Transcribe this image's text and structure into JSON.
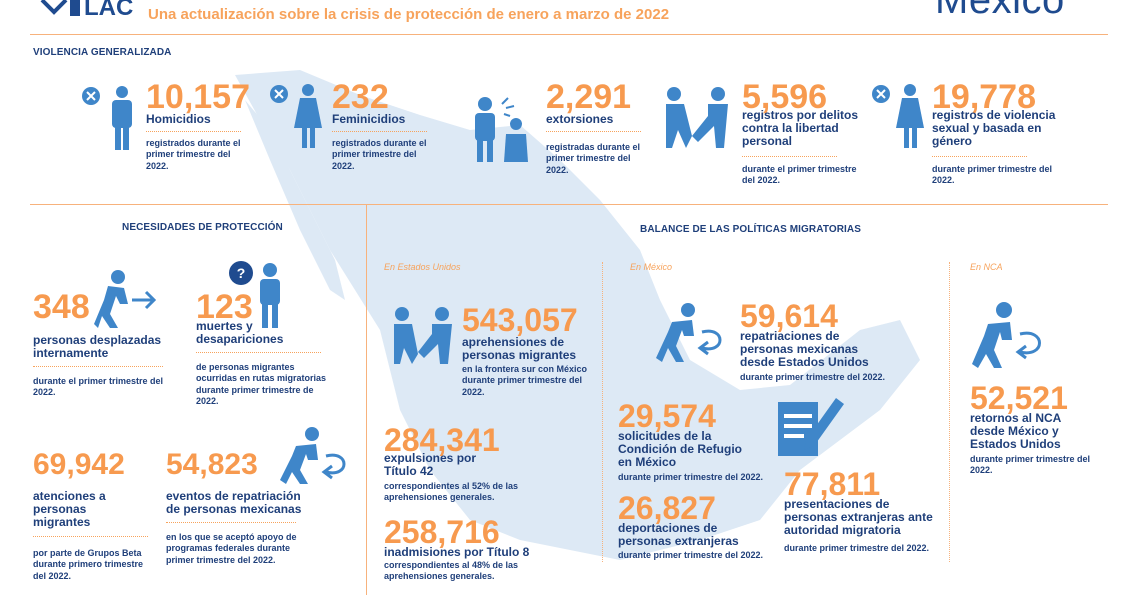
{
  "header": {
    "logo_text": "LAC",
    "subtitle": "Una actualización sobre la crisis de protección de enero a marzo de 2022",
    "country": "México"
  },
  "violencia": {
    "title": "VIOLENCIA GENERALIZADA",
    "items": [
      {
        "number": "10,157",
        "label": "Homicidios",
        "note": "registrados durante el primer trimestre del 2022."
      },
      {
        "number": "232",
        "label": "Feminicidios",
        "note": "registrados durante el primer trimestre del 2022."
      },
      {
        "number": "2,291",
        "label": "extorsiones",
        "note": "registradas durante el primer trimestre del 2022."
      },
      {
        "number": "5,596",
        "label": "registros por delitos contra la libertad personal",
        "note": "durante el primer trimestre del 2022."
      },
      {
        "number": "19,778",
        "label": "registros de violencia sexual y basada en género",
        "note": "durante primer trimestre del 2022."
      }
    ]
  },
  "necesidades": {
    "title": "NECESIDADES DE PROTECCIÓN",
    "items": [
      {
        "number": "348",
        "label": "personas desplazadas internamente",
        "note": "durante el primer trimestre del 2022."
      },
      {
        "number": "123",
        "label": "muertes y desapariciones",
        "note": "de personas migrantes ocurridas en rutas migratorias durante primer trimestre de 2022."
      },
      {
        "number": "69,942",
        "label": "atenciones a personas migrantes",
        "note": "por parte de Grupos Beta durante primero trimestre del 2022."
      },
      {
        "number": "54,823",
        "label": "eventos de repatriación de personas mexicanas",
        "note": "en los que se aceptó apoyo de programas federales durante primer trimestre del 2022."
      }
    ]
  },
  "balance": {
    "title": "BALANCE DE LAS POLÍTICAS MIGRATORIAS",
    "regions": [
      "En Estados Unidos",
      "En México",
      "En NCA"
    ],
    "eeuu": [
      {
        "number": "543,057",
        "label": "aprehensiones de personas migrantes",
        "note": "en la frontera sur con México durante primer trimestre del 2022."
      },
      {
        "number": "284,341",
        "label": "expulsiones por Título 42",
        "note": "correspondientes al 52% de las aprehensiones generales."
      },
      {
        "number": "258,716",
        "label": "inadmisiones por Título 8",
        "note": "correspondientes al 48% de las aprehensiones generales."
      }
    ],
    "mexico": [
      {
        "number": "59,614",
        "label": "repatriaciones de personas mexicanas desde Estados Unidos",
        "note": "durante primer trimestre del 2022."
      },
      {
        "number": "29,574",
        "label": "solicitudes de la Condición de Refugio en México",
        "note": "durante primer trimestre del 2022."
      },
      {
        "number": "77,811",
        "label": "presentaciones de personas extranjeras ante autoridad migratoria",
        "note": "durante primer trimestre del 2022."
      },
      {
        "number": "26,827",
        "label": "deportaciones de personas extranjeras",
        "note": "durante primer trimestre del 2022."
      }
    ],
    "nca": [
      {
        "number": "52,521",
        "label": "retornos al NCA desde México y Estados Unidos",
        "note": "durante primer trimestre del 2022."
      }
    ]
  },
  "colors": {
    "accent": "#f79a4f",
    "navy": "#1f3f7a",
    "icon_blue": "#3f86c9",
    "map": "#dce9f5"
  }
}
